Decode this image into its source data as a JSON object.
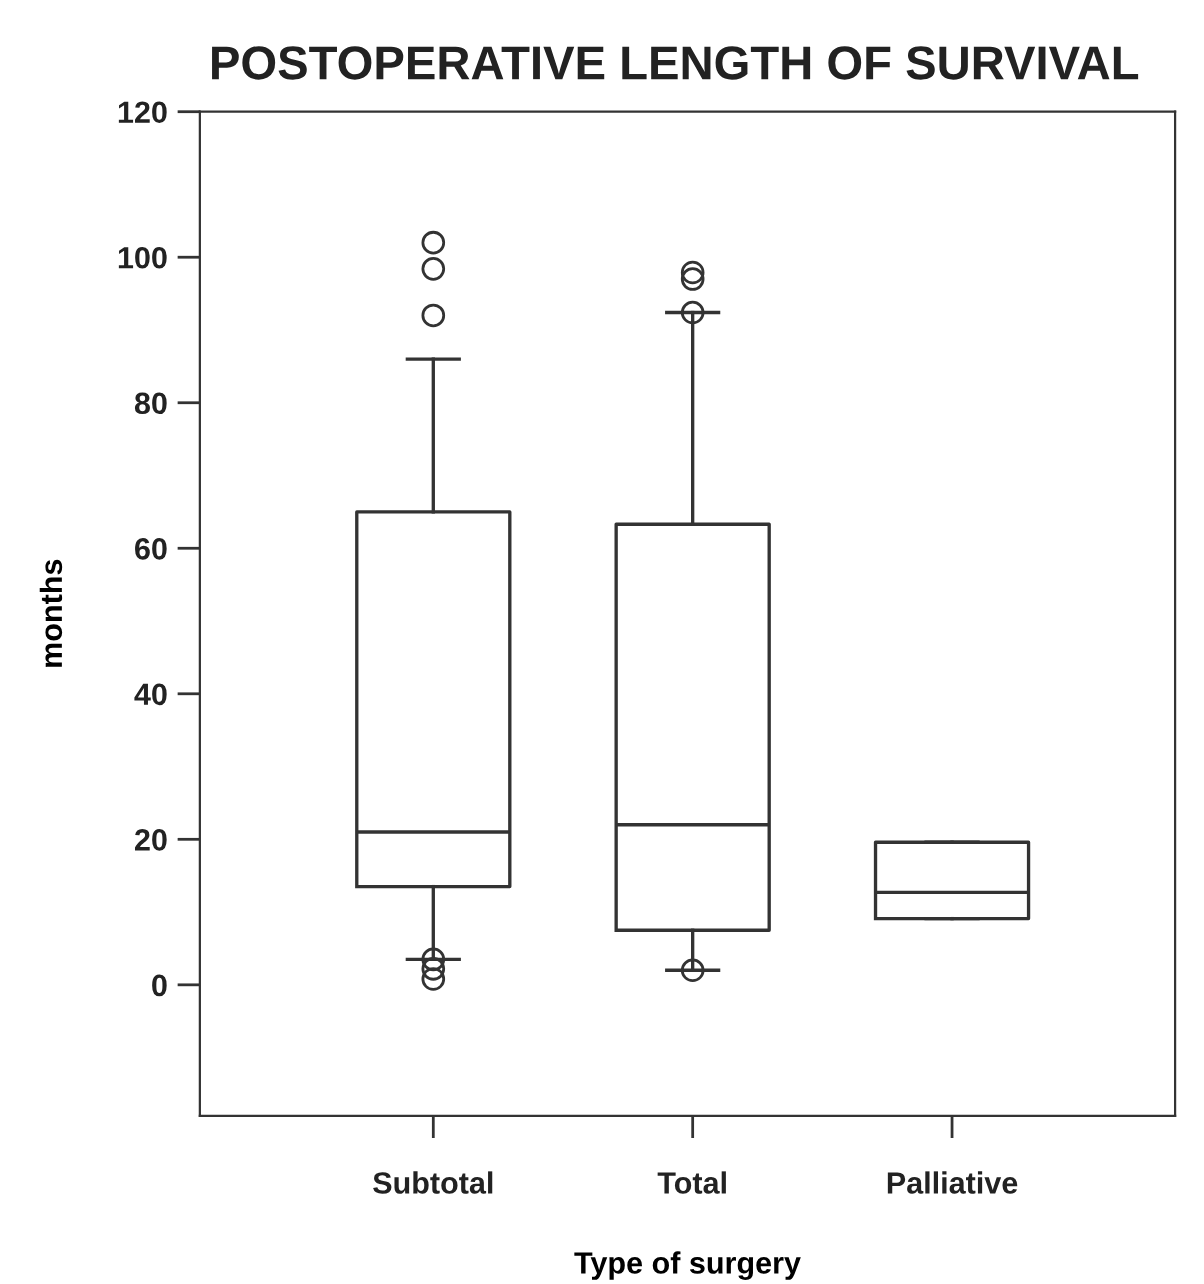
{
  "chart_data": {
    "type": "box",
    "title": "POSTOPERATIVE LENGTH OF SURVIVAL",
    "xlabel": "Type of surgery",
    "ylabel": "months",
    "categories": [
      "Subtotal",
      "Total",
      "Palliative"
    ],
    "boxes": [
      {
        "low": 3.5,
        "q1": 13.5,
        "median": 21,
        "q3": 65,
        "high": 86,
        "outliers": [
          102,
          98.4,
          92,
          3.5,
          2.2,
          0.8
        ]
      },
      {
        "low": 2,
        "q1": 7.5,
        "median": 22,
        "q3": 63.3,
        "high": 92.4,
        "outliers": [
          97.9,
          97,
          92.4,
          2
        ]
      },
      {
        "low": 9.1,
        "q1": 9.1,
        "median": 12.7,
        "q3": 19.6,
        "high": 19.6
      }
    ],
    "ylim": [
      -18,
      120
    ],
    "yticks": [
      0,
      20,
      40,
      60,
      80,
      100,
      120
    ],
    "grid": false,
    "legend": false
  }
}
